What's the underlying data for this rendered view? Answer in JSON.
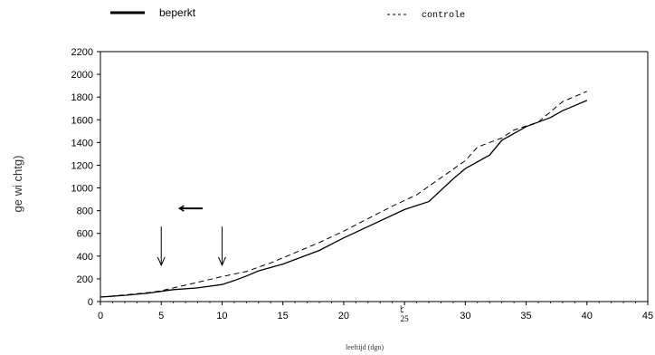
{
  "chart_data": {
    "type": "line",
    "title": "",
    "xlabel": "leeftijd (dgn)",
    "ylabel": "ge wi chtg)",
    "xlim": [
      0,
      45
    ],
    "ylim": [
      0,
      2200
    ],
    "x_ticks": [
      0,
      5,
      10,
      15,
      20,
      25,
      30,
      35,
      40,
      45
    ],
    "y_ticks": [
      0,
      200,
      400,
      600,
      800,
      1000,
      1200,
      1400,
      1600,
      1800,
      2000,
      2200
    ],
    "x_tick_labels": [
      "0",
      "5",
      "10",
      "15",
      "20",
      "25",
      "30",
      "35",
      "40",
      "45"
    ],
    "y_tick_labels": [
      "0",
      "200",
      "400",
      "600",
      "800",
      "1000",
      "1200",
      "1400",
      "1600",
      "1800",
      "2000",
      "2200"
    ],
    "grid": false,
    "legend_placement": "top",
    "series": [
      {
        "name": "beperkt",
        "style": "solid",
        "color": "#000000",
        "x": [
          0,
          2,
          4,
          5,
          6,
          8,
          10,
          11,
          12,
          13,
          15,
          18,
          20,
          22,
          25,
          27,
          29,
          30,
          32,
          33,
          35,
          37,
          38,
          40
        ],
        "y": [
          40,
          55,
          75,
          90,
          105,
          120,
          150,
          185,
          225,
          270,
          330,
          450,
          560,
          660,
          810,
          880,
          1080,
          1170,
          1290,
          1420,
          1540,
          1620,
          1680,
          1770
        ]
      },
      {
        "name": "controle",
        "style": "dashed",
        "color": "#000000",
        "x": [
          0,
          2,
          4,
          5,
          6,
          8,
          10,
          12,
          14,
          16,
          18,
          20,
          22,
          24,
          26,
          28,
          30,
          31,
          33,
          34,
          36,
          38,
          40
        ],
        "y": [
          40,
          58,
          80,
          95,
          120,
          170,
          220,
          265,
          340,
          430,
          520,
          620,
          730,
          840,
          940,
          1090,
          1240,
          1360,
          1440,
          1510,
          1580,
          1760,
          1850
        ]
      }
    ],
    "annotations": [
      {
        "type": "down-arrow",
        "x": 5,
        "y_from": 660,
        "y_to": 320
      },
      {
        "type": "down-arrow",
        "x": 10,
        "y_from": 660,
        "y_to": 320
      },
      {
        "type": "left-arrow",
        "x_from": 8.4,
        "x_to": 6.5,
        "y": 820
      },
      {
        "type": "stray-mark",
        "text": "ﾋ",
        "x": 24.8,
        "y": -120
      }
    ]
  }
}
